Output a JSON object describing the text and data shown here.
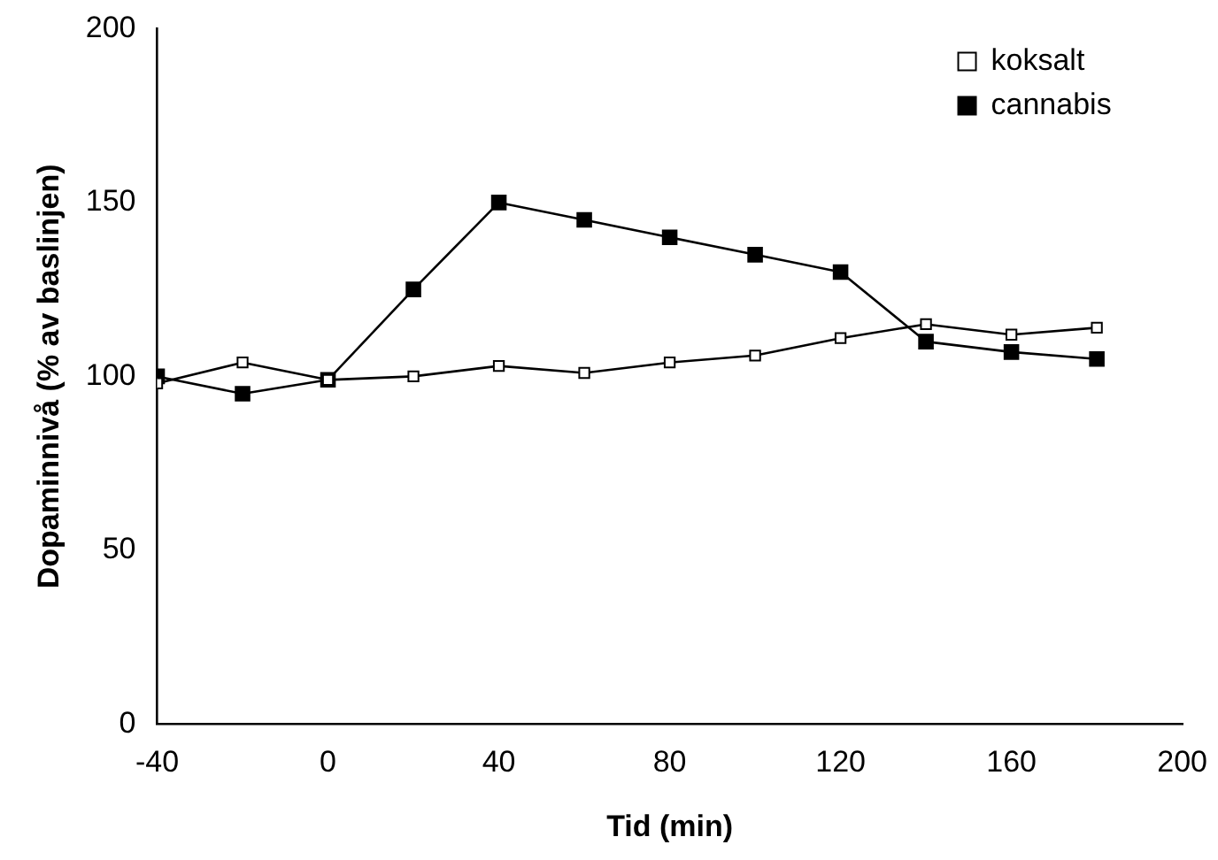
{
  "chart_data": {
    "type": "line",
    "xlabel": "Tid (min)",
    "ylabel": "Dopaminnivå (% av baslinjen)",
    "x": [
      -40,
      -20,
      0,
      20,
      40,
      60,
      80,
      100,
      120,
      140,
      160,
      180
    ],
    "series": [
      {
        "name": "cannabis",
        "color": "#000000",
        "values": [
          100,
          95,
          99,
          125,
          150,
          145,
          140,
          135,
          130,
          110,
          107,
          105
        ]
      },
      {
        "name": "koksalt",
        "color": "#000000",
        "colors": [
          "#ffffff",
          "#ffffff",
          "#ffffff",
          "#ffffff",
          "#ffffff",
          "#ffffff",
          "#ffffff",
          "#ffffff",
          "#ffffff",
          "#ffffff",
          "#ffffff",
          "#ffffff"
        ],
        "values": [
          98,
          104,
          99,
          100,
          103,
          101,
          104,
          106,
          111,
          115,
          112,
          114
        ]
      }
    ],
    "xlim": [
      -40,
      200
    ],
    "xticks": [
      -40,
      0,
      40,
      80,
      120,
      160,
      200
    ],
    "ylim": [
      0,
      200
    ],
    "yticks": [
      0,
      50,
      100,
      150,
      200
    ],
    "grid": false,
    "legend": "top right",
    "marker": "square",
    "line_style": "solid"
  }
}
